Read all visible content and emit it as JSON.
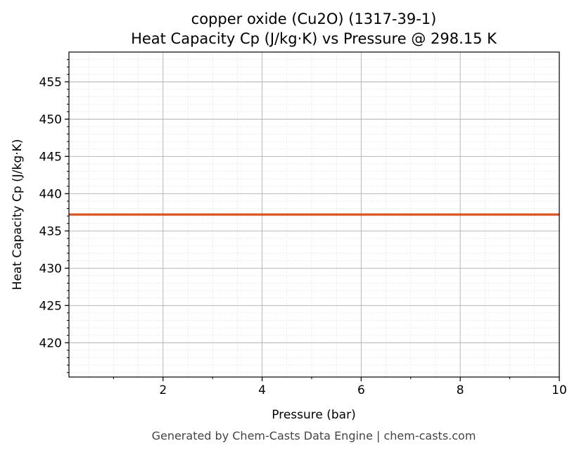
{
  "chart_data": {
    "type": "line",
    "title": "copper oxide (Cu2O) (1317-39-1)",
    "subtitle": "Heat Capacity Cp (J/kg·K) vs Pressure @ 298.15 K",
    "xlabel": "Pressure (bar)",
    "ylabel": "Heat Capacity Cp (J/kg·K)",
    "xlim": [
      0.1,
      10
    ],
    "ylim": [
      415.4,
      459.0
    ],
    "xticks": [
      2,
      4,
      6,
      8,
      10
    ],
    "yticks": [
      420,
      425,
      430,
      435,
      440,
      445,
      450,
      455
    ],
    "grid": true,
    "series": [
      {
        "x": [
          0.1,
          10
        ],
        "y": [
          437.2,
          437.2
        ],
        "color": "#d9541e"
      }
    ]
  },
  "footer": "Generated by Chem-Casts Data Engine | chem-casts.com"
}
